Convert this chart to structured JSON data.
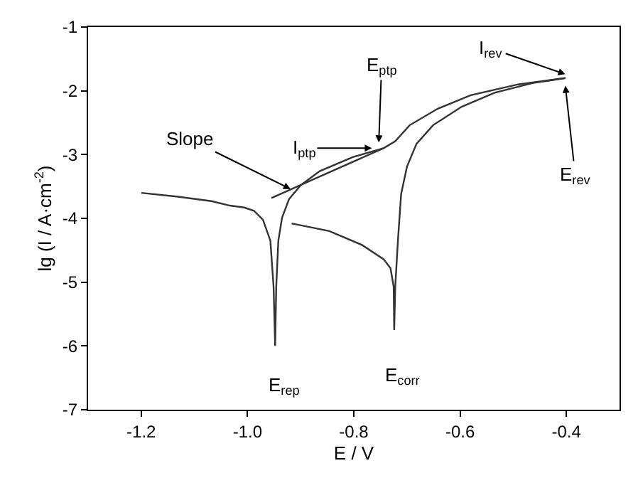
{
  "chart_data": {
    "type": "line",
    "xlabel": "E / V",
    "ylabel": "lg (I / A·cm$^{-2}$)",
    "xlim": [
      -1.3,
      -0.3
    ],
    "xticks": [
      {
        "value": -1.2,
        "label": "-1.2"
      },
      {
        "value": -1.0,
        "label": "-1.0"
      },
      {
        "value": -0.8,
        "label": "-0.8"
      },
      {
        "value": -0.6,
        "label": "-0.6"
      },
      {
        "value": -0.4,
        "label": "-0.4"
      }
    ],
    "ylim": [
      -7,
      -1
    ],
    "yticks": [
      -7,
      -6,
      -5,
      -4,
      -3,
      -2,
      -1
    ],
    "marker": "none",
    "line_style": "solid",
    "series": [
      {
        "color": "#333333",
        "x": [
          -0.917,
          -0.846,
          -0.784,
          -0.744,
          -0.731,
          -0.725,
          -0.724,
          -0.722,
          -0.717,
          -0.711,
          -0.7,
          -0.682,
          -0.651,
          -0.597,
          -0.535,
          -0.464,
          -0.402
        ],
        "values": [
          -4.08,
          -4.2,
          -4.42,
          -4.64,
          -4.78,
          -5.07,
          -5.75,
          -5.07,
          -4.35,
          -3.62,
          -3.19,
          -2.83,
          -2.54,
          -2.25,
          -2.03,
          -1.88,
          -1.8
        ]
      },
      {
        "color": "#333333",
        "x": [
          -0.402,
          -0.491,
          -0.58,
          -0.642,
          -0.695,
          -0.722,
          -0.744,
          -0.802,
          -0.864,
          -0.9,
          -0.922,
          -0.935,
          -0.942,
          -0.946,
          -0.948,
          -0.951,
          -0.957,
          -0.971,
          -0.988,
          -1.006,
          -1.033,
          -1.068,
          -1.131,
          -1.2
        ],
        "values": [
          -1.8,
          -1.9,
          -2.07,
          -2.28,
          -2.54,
          -2.79,
          -2.9,
          -3.04,
          -3.26,
          -3.48,
          -3.7,
          -3.99,
          -4.35,
          -5.07,
          -6.0,
          -5.07,
          -4.35,
          -4.02,
          -3.88,
          -3.83,
          -3.8,
          -3.73,
          -3.66,
          -3.6
        ]
      },
      {
        "color": "#333333",
        "x": [
          -0.955,
          -0.744
        ],
        "values": [
          -3.68,
          -2.9
        ]
      }
    ],
    "annotations": [
      {
        "text": "Slope",
        "x": -0.919,
        "y": -3.54
      },
      {
        "text": "I$_{ptp}$",
        "x": -0.766,
        "y": -2.9
      },
      {
        "text": "E$_{ptp}$",
        "x": -0.753,
        "y": -2.81
      },
      {
        "text": "I$_{rev}$",
        "x": -0.402,
        "y": -1.74
      },
      {
        "text": "E$_{rev}$",
        "x": -0.402,
        "y": -1.92
      },
      {
        "text": "E$_{rep}$",
        "x": -0.948,
        "y": -6.0
      },
      {
        "text": "E$_{corr}$",
        "x": -0.724,
        "y": -5.75
      }
    ]
  }
}
